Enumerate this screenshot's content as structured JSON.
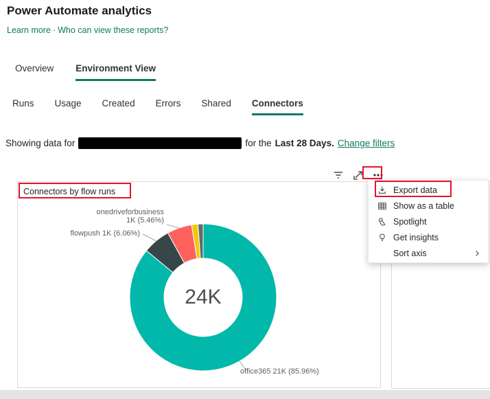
{
  "page": {
    "title": "Power Automate analytics",
    "links": {
      "learn_more": "Learn more",
      "separator": "·",
      "who_can_view": "Who can view these reports?"
    }
  },
  "tabs": [
    {
      "label": "Overview",
      "active": false
    },
    {
      "label": "Environment View",
      "active": true
    }
  ],
  "subtabs": [
    {
      "label": "Runs",
      "active": false
    },
    {
      "label": "Usage",
      "active": false
    },
    {
      "label": "Created",
      "active": false
    },
    {
      "label": "Errors",
      "active": false
    },
    {
      "label": "Shared",
      "active": false
    },
    {
      "label": "Connectors",
      "active": true
    }
  ],
  "filter_bar": {
    "prefix": "Showing data for",
    "middle": "for the",
    "range": "Last 28 Days.",
    "change_filters": "Change filters"
  },
  "toolbar": {
    "icons": [
      "filter",
      "focus-mode",
      "more-options"
    ]
  },
  "menu": {
    "items": [
      {
        "label": "Export data",
        "icon": "export"
      },
      {
        "label": "Show as a table",
        "icon": "table"
      },
      {
        "label": "Spotlight",
        "icon": "spotlight"
      },
      {
        "label": "Get insights",
        "icon": "insights"
      },
      {
        "label": "Sort axis",
        "icon": "",
        "has_submenu": true
      }
    ]
  },
  "chart_data": {
    "type": "donut",
    "title": "Connectors by flow runs",
    "center_total": "24K",
    "legend_position": "none",
    "segments": [
      {
        "name": "office365",
        "value_label": "21K",
        "pct": 85.96,
        "color": "#01B8AA"
      },
      {
        "name": "flowpush",
        "value_label": "1K",
        "pct": 6.06,
        "color": "#374649"
      },
      {
        "name": "onedriveforbusiness",
        "value_label": "1K",
        "pct": 5.46,
        "color": "#FD625E"
      },
      {
        "name": "other-1",
        "value_label": "",
        "pct": 1.4,
        "color": "#F2C80F"
      },
      {
        "name": "other-2",
        "value_label": "",
        "pct": 1.12,
        "color": "#5F6B6D"
      }
    ],
    "callouts": {
      "onedrive_line1": "onedriveforbusiness",
      "onedrive_line2": "1K (5.46%)",
      "flowpush": "flowpush 1K (6.06%)",
      "office365": "office365 21K (85.96%)"
    }
  },
  "colors": {
    "accent": "#117865",
    "annotation": "#e8112d"
  }
}
